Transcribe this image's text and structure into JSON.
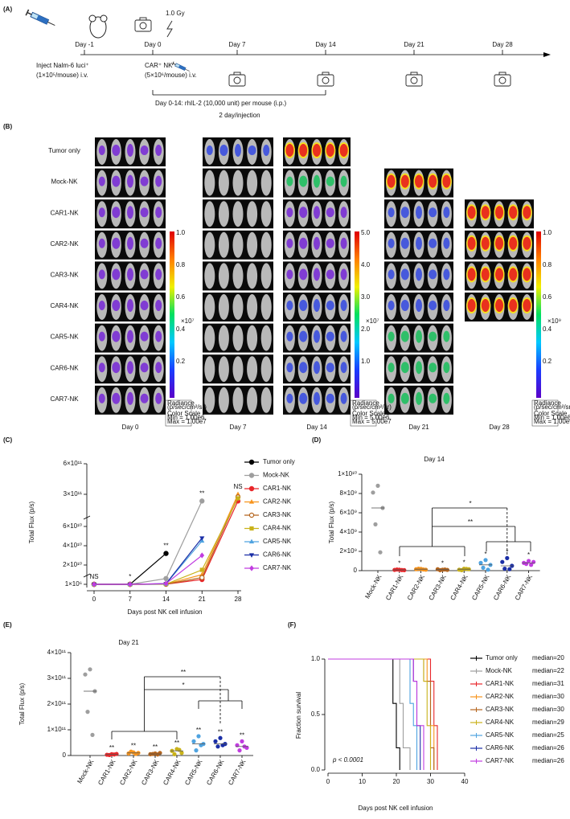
{
  "panel_a": {
    "label": "(A)",
    "dose": "1.0 Gy",
    "days": [
      "Day -1",
      "Day 0",
      "Day 7",
      "Day 14",
      "Day 21",
      "Day 28"
    ],
    "tumor_injection": [
      "Inject Nalm-6 luci⁺",
      "(1×10⁵/mouse) i.v."
    ],
    "nk_injection": [
      "CAR⁺ NK",
      "(5×10⁶/mouse) i.v."
    ],
    "il2": [
      "Day 0-14: rhIL-2 (10,000 unit) per mouse (i.p.)",
      "2 day/injection"
    ]
  },
  "panel_b": {
    "label": "(B)",
    "rows": [
      "Tumor only",
      "Mock-NK",
      "CAR1-NK",
      "CAR2-NK",
      "CAR3-NK",
      "CAR4-NK",
      "CAR5-NK",
      "CAR6-NK",
      "CAR7-NK"
    ],
    "columns": [
      "Day 0",
      "Day 7",
      "Day 14",
      "Day 21",
      "Day 28"
    ],
    "scales": [
      {
        "ticks": [
          "1.0",
          "0.8",
          "0.6",
          "0.4",
          "0.2"
        ],
        "unit": "×10⁷",
        "title": [
          "Radiance",
          "(p/sec/cm²/sr)"
        ],
        "range": [
          "Color Scale",
          "Min = 1.00e6",
          "Max = 1.00e7"
        ]
      },
      {
        "ticks": [
          "5.0",
          "4.0",
          "3.0",
          "2.0",
          "1.0"
        ],
        "unit": "×10⁷",
        "title": [
          "Radiance",
          "(p/sec/cm²/sr)"
        ],
        "range": [
          "Color Scale",
          "Min = 5.00e6",
          "Max = 5.00e7"
        ]
      },
      {
        "ticks": [
          "1.0",
          "0.8",
          "0.6",
          "0.4",
          "0.2"
        ],
        "unit": "×10⁹",
        "title": [
          "Radiance",
          "(p/sec/cm²/sr)"
        ],
        "range": [
          "Color Scale",
          "Min = 1.00e8",
          "Max = 1.00e9"
        ]
      }
    ]
  },
  "chart_data": [
    {
      "panel": "(C)",
      "type": "line",
      "xlabel": "Days post NK cell infusion",
      "ylabel": "Total Flux (p/s)",
      "x": [
        0,
        7,
        14,
        21,
        28
      ],
      "xlim": [
        0,
        28
      ],
      "xticks": [
        0,
        7,
        14,
        21,
        28
      ],
      "ylim": [
        1000000,
        600000000000
      ],
      "yticks": [
        {
          "value": 1000000,
          "label": "1×10⁶"
        },
        {
          "value": 20000000000,
          "label": "2×10¹⁰"
        },
        {
          "value": 40000000000,
          "label": "4×10¹⁰"
        },
        {
          "value": 60000000000,
          "label": "6×10¹⁰"
        },
        {
          "value": 300000000000,
          "label": "3×10¹¹"
        },
        {
          "value": 600000000000,
          "label": "6×10¹¹"
        }
      ],
      "annotations": [
        "NS",
        "*",
        "**",
        "**",
        "NS"
      ],
      "series": [
        {
          "name": "Tumor only",
          "color": "#000000",
          "marker": "circle",
          "values": [
            1000000,
            1500000,
            32000000000,
            null,
            null
          ]
        },
        {
          "name": "Mock-NK",
          "color": "#9e9e9e",
          "marker": "circle",
          "values": [
            1000000,
            1000000,
            6000000000,
            250000000000,
            null
          ]
        },
        {
          "name": "CAR1-NK",
          "color": "#e8262a",
          "marker": "circle",
          "values": [
            1000000,
            1000000,
            100000000,
            5000000000,
            250000000000
          ]
        },
        {
          "name": "CAR2-NK",
          "color": "#f7941d",
          "marker": "triangle",
          "values": [
            1000000,
            1000000,
            150000000,
            10000000000,
            300000000000
          ]
        },
        {
          "name": "CAR3-NK",
          "color": "#b5651d",
          "marker": "circle-open",
          "values": [
            1000000,
            1000000,
            100000000,
            7000000000,
            280000000000
          ]
        },
        {
          "name": "CAR4-NK",
          "color": "#c9b21a",
          "marker": "square",
          "values": [
            1000000,
            1000000,
            150000000,
            15000000000,
            270000000000
          ]
        },
        {
          "name": "CAR5-NK",
          "color": "#4fa3e0",
          "marker": "triangle",
          "values": [
            1000000,
            1000000,
            500000000,
            45000000000,
            null
          ]
        },
        {
          "name": "CAR6-NK",
          "color": "#1a2ea6",
          "marker": "triangle-down",
          "values": [
            1000000,
            1000000,
            600000000,
            48000000000,
            null
          ]
        },
        {
          "name": "CAR7-NK",
          "color": "#c13ce0",
          "marker": "diamond",
          "values": [
            1000000,
            1000000,
            800000000,
            30000000000,
            null
          ]
        }
      ]
    },
    {
      "panel": "(D)",
      "type": "strip",
      "title": "Day 14",
      "ylabel": "Total Flux (p/s)",
      "categories": [
        "Mock-NK",
        "CAR1-NK",
        "CAR2-NK",
        "CAR3-NK",
        "CAR4-NK",
        "CAR5-NK",
        "CAR6-NK",
        "CAR7-NK"
      ],
      "colors": [
        "#9e9e9e",
        "#e8262a",
        "#f7941d",
        "#b5651d",
        "#c9b21a",
        "#4fa3e0",
        "#1a2ea6",
        "#c13ce0"
      ],
      "values": [
        [
          8800000000,
          8100000000,
          6500000000,
          4800000000,
          1900000000
        ],
        [
          100000000,
          80000000,
          50000000,
          120000000,
          60000000
        ],
        [
          180000000,
          150000000,
          100000000,
          200000000,
          120000000
        ],
        [
          100000000,
          150000000,
          80000000,
          50000000,
          120000000
        ],
        [
          200000000,
          100000000,
          150000000,
          50000000,
          180000000
        ],
        [
          1100000000,
          800000000,
          600000000,
          300000000,
          100000000
        ],
        [
          1300000000,
          900000000,
          500000000,
          200000000,
          150000000
        ],
        [
          1000000000,
          800000000,
          900000000,
          700000000,
          600000000
        ]
      ],
      "medians": [
        6500000000,
        80000000,
        150000000,
        100000000,
        150000000,
        600000000,
        500000000,
        800000000
      ],
      "significance": [
        null,
        "*",
        "*",
        "*",
        "*",
        "*",
        "*",
        "*"
      ],
      "bracket_labels": [
        "*",
        "**"
      ],
      "ylim": [
        0,
        10000000000
      ],
      "yticks": [
        0,
        {
          "value": 2000000000,
          "label": "2×10⁹"
        },
        {
          "value": 4000000000,
          "label": "4×10⁹"
        },
        {
          "value": 6000000000,
          "label": "6×10⁹"
        },
        {
          "value": 8000000000,
          "label": "8×10⁹"
        },
        {
          "value": 10000000000,
          "label": "1×10¹⁰"
        }
      ]
    },
    {
      "panel": "(E)",
      "type": "strip",
      "title": "Day 21",
      "ylabel": "Total Flux (p/s)",
      "categories": [
        "Mock-NK",
        "CAR1-NK",
        "CAR2-NK",
        "CAR3-NK",
        "CAR4-NK",
        "CAR5-NK",
        "CAR6-NK",
        "CAR7-NK"
      ],
      "colors": [
        "#9e9e9e",
        "#e8262a",
        "#f7941d",
        "#b5651d",
        "#c9b21a",
        "#4fa3e0",
        "#1a2ea6",
        "#c13ce0"
      ],
      "values": [
        [
          335000000000,
          315000000000,
          250000000000,
          170000000000,
          80000000000
        ],
        [
          5000000000,
          3000000000,
          6000000000,
          2000000000,
          4000000000
        ],
        [
          12000000000,
          8000000000,
          10000000000,
          15000000000,
          6000000000
        ],
        [
          8000000000,
          5000000000,
          10000000000,
          6000000000,
          4000000000
        ],
        [
          25000000000,
          18000000000,
          10000000000,
          5000000000,
          22000000000
        ],
        [
          75000000000,
          55000000000,
          45000000000,
          20000000000,
          40000000000
        ],
        [
          68000000000,
          55000000000,
          45000000000,
          35000000000,
          40000000000
        ],
        [
          55000000000,
          40000000000,
          30000000000,
          20000000000,
          35000000000
        ]
      ],
      "medians": [
        250000000000,
        4000000000,
        10000000000,
        6000000000,
        18000000000,
        45000000000,
        45000000000,
        35000000000
      ],
      "significance": [
        null,
        "**",
        "**",
        "**",
        "**",
        "**",
        "**",
        "**"
      ],
      "bracket_labels": [
        "**",
        "*"
      ],
      "ylim": [
        0,
        400000000000
      ],
      "yticks": [
        0,
        {
          "value": 100000000000,
          "label": "1×10¹¹"
        },
        {
          "value": 200000000000,
          "label": "2×10¹¹"
        },
        {
          "value": 300000000000,
          "label": "3×10¹¹"
        },
        {
          "value": 400000000000,
          "label": "4×10¹¹"
        }
      ]
    },
    {
      "panel": "(F)",
      "type": "survival",
      "xlabel": "Days post NK cell infusion",
      "ylabel": "Fraction survival",
      "annotation": "p < 0.0001",
      "xlim": [
        0,
        40
      ],
      "xticks": [
        0,
        10,
        20,
        30,
        40
      ],
      "ylim": [
        0,
        1
      ],
      "yticks": [
        {
          "value": 0,
          "label": "0.0"
        },
        {
          "value": 0.5,
          "label": "0.5"
        },
        {
          "value": 1,
          "label": "1.0"
        }
      ],
      "series": [
        {
          "name": "Tumor only",
          "median_label": "median=20",
          "color": "#000000",
          "x": [
            0,
            19,
            20,
            21
          ],
          "values": [
            1,
            0.6,
            0.2,
            0
          ]
        },
        {
          "name": "Mock-NK",
          "median_label": "median=22",
          "color": "#9e9e9e",
          "x": [
            0,
            21,
            22,
            24
          ],
          "values": [
            1,
            0.6,
            0.2,
            0
          ]
        },
        {
          "name": "CAR1-NK",
          "median_label": "median=31",
          "color": "#e8262a",
          "x": [
            0,
            30,
            31,
            32
          ],
          "values": [
            1,
            0.8,
            0.4,
            0
          ]
        },
        {
          "name": "CAR2-NK",
          "median_label": "median=30",
          "color": "#f7941d",
          "x": [
            0,
            29,
            30,
            31
          ],
          "values": [
            1,
            0.8,
            0.4,
            0
          ]
        },
        {
          "name": "CAR3-NK",
          "median_label": "median=30",
          "color": "#b5651d",
          "x": [
            0,
            28,
            30,
            31
          ],
          "values": [
            1,
            0.8,
            0.2,
            0
          ]
        },
        {
          "name": "CAR4-NK",
          "median_label": "median=29",
          "color": "#c9b21a",
          "x": [
            0,
            28,
            29,
            30
          ],
          "values": [
            1,
            0.8,
            0.4,
            0
          ]
        },
        {
          "name": "CAR5-NK",
          "median_label": "median=25",
          "color": "#4fa3e0",
          "x": [
            0,
            24,
            25,
            26
          ],
          "values": [
            1,
            0.6,
            0.4,
            0
          ]
        },
        {
          "name": "CAR6-NK",
          "median_label": "median=26",
          "color": "#1a2ea6",
          "x": [
            0,
            25,
            26,
            27
          ],
          "values": [
            1,
            0.8,
            0.4,
            0
          ]
        },
        {
          "name": "CAR7-NK",
          "median_label": "median=26",
          "color": "#c13ce0",
          "x": [
            0,
            25,
            26,
            28
          ],
          "values": [
            1,
            0.8,
            0.4,
            0
          ]
        }
      ]
    }
  ]
}
